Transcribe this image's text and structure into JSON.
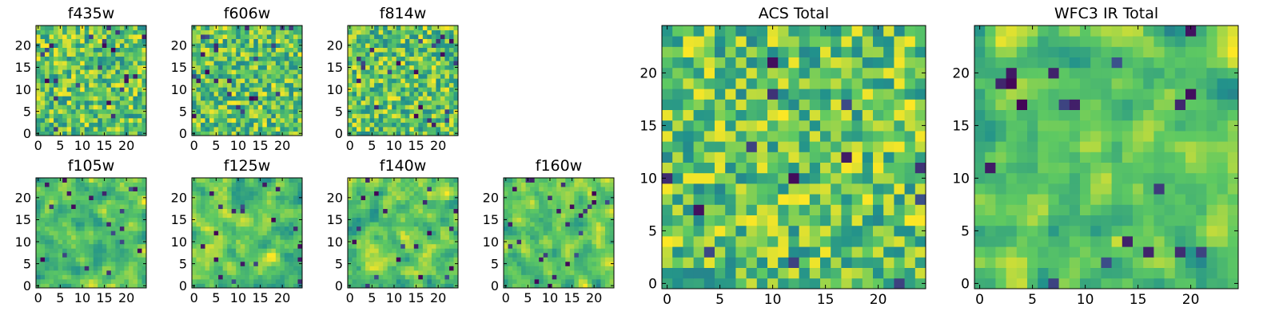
{
  "figure": {
    "colormap": "viridis",
    "colormap_stops": [
      "#440154",
      "#3b528b",
      "#21918c",
      "#5ec962",
      "#fde725"
    ]
  },
  "chart_data": [
    {
      "id": "f435w",
      "type": "heatmap",
      "title": "f435w",
      "grid_size": 25,
      "xlim": [
        -0.5,
        24.5
      ],
      "ylim": [
        -0.5,
        24.5
      ],
      "xticks": [
        "0",
        "5",
        "10",
        "15",
        "20"
      ],
      "yticks": [
        "0",
        "5",
        "10",
        "15",
        "20"
      ],
      "seed": 11,
      "smooth": 0,
      "dark_frac": 0.035
    },
    {
      "id": "f606w",
      "type": "heatmap",
      "title": "f606w",
      "grid_size": 25,
      "xlim": [
        -0.5,
        24.5
      ],
      "ylim": [
        -0.5,
        24.5
      ],
      "xticks": [
        "0",
        "5",
        "10",
        "15",
        "20"
      ],
      "yticks": [
        "0",
        "5",
        "10",
        "15",
        "20"
      ],
      "seed": 23,
      "smooth": 0,
      "dark_frac": 0.035
    },
    {
      "id": "f814w",
      "type": "heatmap",
      "title": "f814w",
      "grid_size": 25,
      "xlim": [
        -0.5,
        24.5
      ],
      "ylim": [
        -0.5,
        24.5
      ],
      "xticks": [
        "0",
        "5",
        "10",
        "15",
        "20"
      ],
      "yticks": [
        "0",
        "5",
        "10",
        "15",
        "20"
      ],
      "seed": 37,
      "smooth": 0,
      "dark_frac": 0.035
    },
    {
      "id": "f105w",
      "type": "heatmap",
      "title": "f105w",
      "grid_size": 25,
      "xlim": [
        -0.5,
        24.5
      ],
      "ylim": [
        -0.5,
        24.5
      ],
      "xticks": [
        "0",
        "5",
        "10",
        "15",
        "20"
      ],
      "yticks": [
        "0",
        "5",
        "10",
        "15",
        "20"
      ],
      "seed": 41,
      "smooth": 1,
      "dark_frac": 0.03
    },
    {
      "id": "f125w",
      "type": "heatmap",
      "title": "f125w",
      "grid_size": 25,
      "xlim": [
        -0.5,
        24.5
      ],
      "ylim": [
        -0.5,
        24.5
      ],
      "xticks": [
        "0",
        "5",
        "10",
        "15",
        "20"
      ],
      "yticks": [
        "0",
        "5",
        "10",
        "15",
        "20"
      ],
      "seed": 53,
      "smooth": 1,
      "dark_frac": 0.03
    },
    {
      "id": "f140w",
      "type": "heatmap",
      "title": "f140w",
      "grid_size": 25,
      "xlim": [
        -0.5,
        24.5
      ],
      "ylim": [
        -0.5,
        24.5
      ],
      "xticks": [
        "0",
        "5",
        "10",
        "15",
        "20"
      ],
      "yticks": [
        "0",
        "5",
        "10",
        "15",
        "20"
      ],
      "seed": 67,
      "smooth": 1,
      "dark_frac": 0.03
    },
    {
      "id": "f160w",
      "type": "heatmap",
      "title": "f160w",
      "grid_size": 25,
      "xlim": [
        -0.5,
        24.5
      ],
      "ylim": [
        -0.5,
        24.5
      ],
      "xticks": [
        "0",
        "5",
        "10",
        "15",
        "20"
      ],
      "yticks": [
        "0",
        "5",
        "10",
        "15",
        "20"
      ],
      "seed": 79,
      "smooth": 1,
      "dark_frac": 0.04
    },
    {
      "id": "acs-total",
      "type": "heatmap",
      "title": "ACS Total",
      "grid_size": 25,
      "xlim": [
        -0.5,
        24.5
      ],
      "ylim": [
        -0.5,
        24.5
      ],
      "xticks": [
        "0",
        "5",
        "10",
        "15",
        "20"
      ],
      "yticks": [
        "0",
        "5",
        "10",
        "15",
        "20"
      ],
      "seed": 97,
      "smooth": 0,
      "dark_frac": 0.02
    },
    {
      "id": "wfc3-ir-total",
      "type": "heatmap",
      "title": "WFC3 IR Total",
      "grid_size": 25,
      "xlim": [
        -0.5,
        24.5
      ],
      "ylim": [
        -0.5,
        24.5
      ],
      "xticks": [
        "0",
        "5",
        "10",
        "15",
        "20"
      ],
      "yticks": [
        "0",
        "5",
        "10",
        "15",
        "20"
      ],
      "seed": 113,
      "smooth": 1,
      "dark_frac": 0.03
    }
  ]
}
